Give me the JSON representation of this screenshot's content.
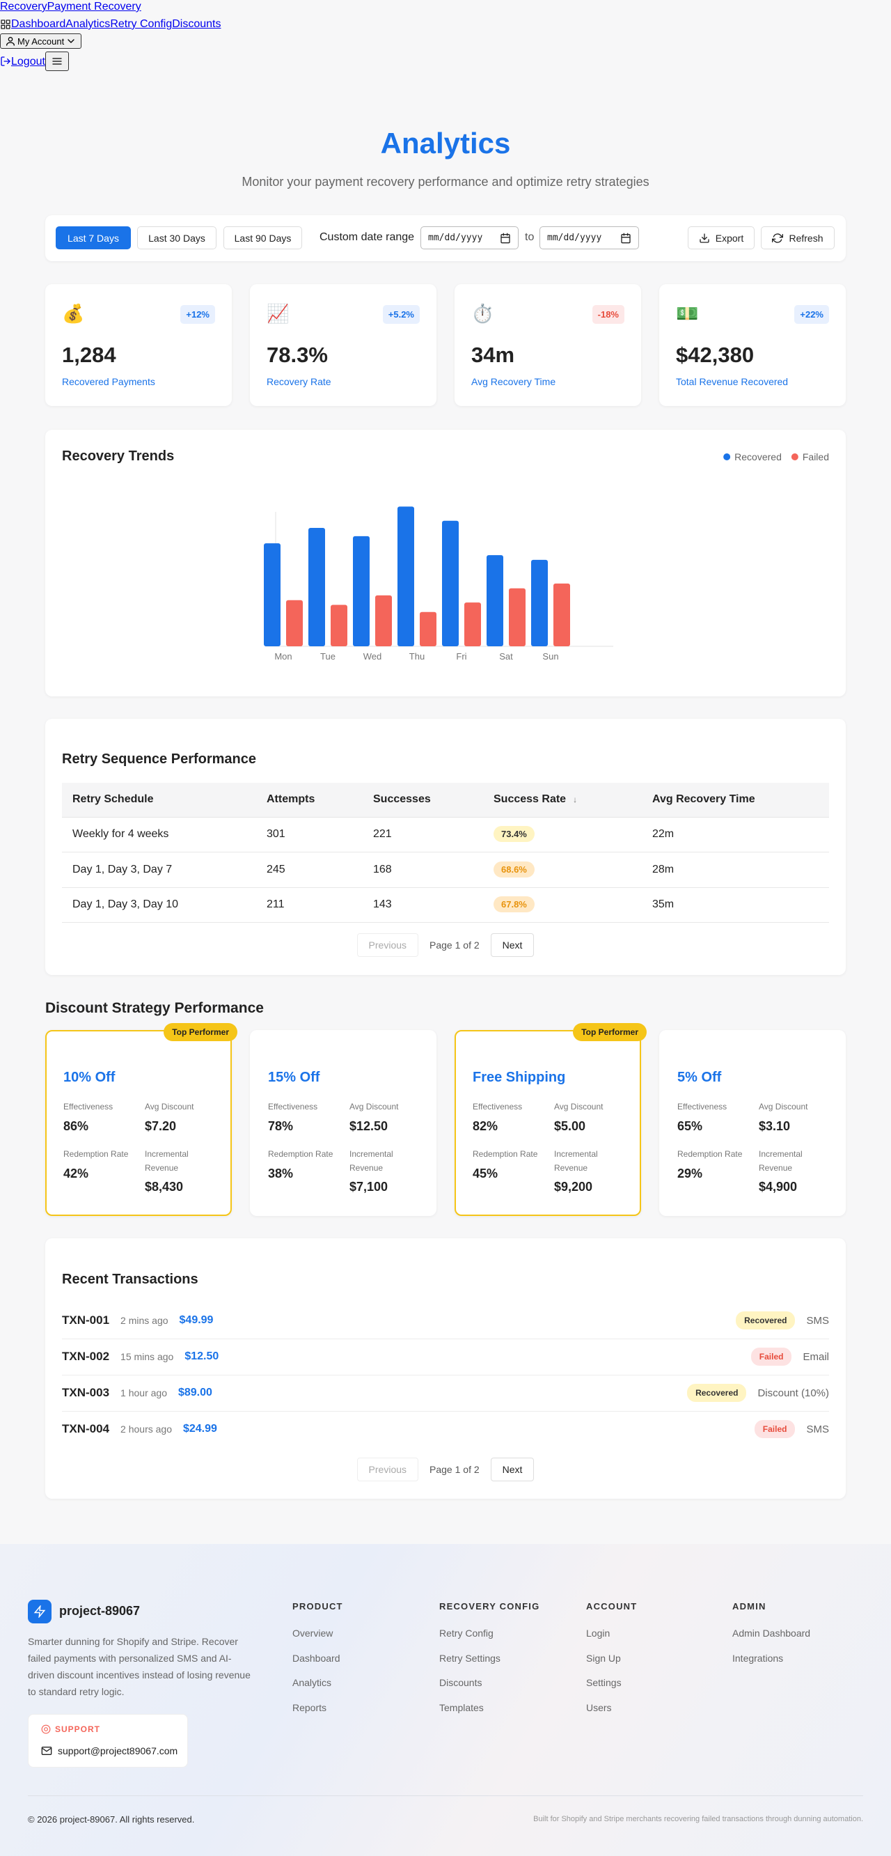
{
  "nav": {
    "brand": "Recovery",
    "brand_tagline": "Payment Recovery",
    "links": [
      "Dashboard",
      "Analytics",
      "Retry Config",
      "Discounts"
    ],
    "account": "My Account",
    "logout": "Logout"
  },
  "header": {
    "title": "Analytics",
    "subtitle": "Monitor your payment recovery performance and optimize retry strategies"
  },
  "filters": {
    "ranges": [
      "Last 7 Days",
      "Last 30 Days",
      "Last 90 Days"
    ],
    "active_range": 0,
    "custom_label": "Custom date range",
    "date_placeholder": "mm/dd/yyyy",
    "separator": "to",
    "export": "Export",
    "refresh": "Refresh"
  },
  "stats": [
    {
      "icon": "💰",
      "change": "+12%",
      "value": "1,284",
      "label": "Recovered Payments",
      "change_bg": "#e8f0fe",
      "change_fg": "#1a73e8"
    },
    {
      "icon": "📈",
      "change": "+5.2%",
      "value": "78.3%",
      "label": "Recovery Rate",
      "change_bg": "#e8f0fe",
      "change_fg": "#1a73e8"
    },
    {
      "icon": "⏱️",
      "change": "-18%",
      "value": "34m",
      "label": "Avg Recovery Time",
      "change_bg": "#fde8e8",
      "change_fg": "#e74c3c"
    },
    {
      "icon": "💵",
      "change": "+22%",
      "value": "$42,380",
      "label": "Total Revenue Recovered",
      "change_bg": "#e8f0fe",
      "change_fg": "#1a73e8"
    }
  ],
  "chart_data": {
    "type": "bar",
    "title": "Recovery Trends",
    "categories": [
      "Mon",
      "Tue",
      "Wed",
      "Thu",
      "Fri",
      "Sat",
      "Sun"
    ],
    "series": [
      {
        "name": "Recovered",
        "color": "#1a73e8",
        "values": [
          87,
          100,
          93,
          118,
          106,
          77,
          73
        ]
      },
      {
        "name": "Failed",
        "color": "#f4655a",
        "values": [
          39,
          35,
          43,
          29,
          37,
          49,
          53
        ]
      }
    ],
    "ylim": [
      0,
      120
    ],
    "legend": "top-right"
  },
  "retry_table": {
    "title": "Retry Sequence Performance",
    "columns": [
      "Retry Schedule",
      "Attempts",
      "Successes",
      "Success Rate",
      "Avg Recovery Time"
    ],
    "sorted_column": 3,
    "sort_indicator": "↓",
    "rows": [
      {
        "schedule": "Weekly for 4 weeks",
        "attempts": "301",
        "successes": "221",
        "success_rate": "73.4%",
        "avg_time": "22m",
        "rate_bg": "#fff4c2",
        "rate_fg": "#333333"
      },
      {
        "schedule": "Day 1, Day 3, Day 7",
        "attempts": "245",
        "successes": "168",
        "success_rate": "68.6%",
        "avg_time": "28m",
        "rate_bg": "#ffe8c4",
        "rate_fg": "#e8930c"
      },
      {
        "schedule": "Day 1, Day 3, Day 10",
        "attempts": "211",
        "successes": "143",
        "success_rate": "67.8%",
        "avg_time": "35m",
        "rate_bg": "#ffe8c4",
        "rate_fg": "#e8930c"
      }
    ],
    "pagination": {
      "previous": "Previous",
      "page": "Page 1 of 2",
      "next": "Next"
    }
  },
  "discounts": {
    "title": "Discount Strategy Performance",
    "badge": "Top Performer",
    "labels": {
      "effectiveness": "Effectiveness",
      "avg_discount": "Avg Discount",
      "redemption_rate": "Redemption Rate",
      "incremental_revenue": "Incremental Revenue"
    },
    "cards": [
      {
        "name": "10% Off",
        "top_performer": true,
        "effectiveness": "86%",
        "avg_discount": "$7.20",
        "redemption_rate": "42%",
        "incremental_revenue": "$8,430"
      },
      {
        "name": "15% Off",
        "top_performer": false,
        "effectiveness": "78%",
        "avg_discount": "$12.50",
        "redemption_rate": "38%",
        "incremental_revenue": "$7,100"
      },
      {
        "name": "Free Shipping",
        "top_performer": true,
        "effectiveness": "82%",
        "avg_discount": "$5.00",
        "redemption_rate": "45%",
        "incremental_revenue": "$9,200"
      },
      {
        "name": "5% Off",
        "top_performer": false,
        "effectiveness": "65%",
        "avg_discount": "$3.10",
        "redemption_rate": "29%",
        "incremental_revenue": "$4,900"
      }
    ]
  },
  "transactions": {
    "title": "Recent Transactions",
    "rows": [
      {
        "id": "TXN-001",
        "time": "2 mins ago",
        "amount": "$49.99",
        "status": "Recovered",
        "channel": "SMS",
        "status_bg": "#fff4c2",
        "status_fg": "#333333"
      },
      {
        "id": "TXN-002",
        "time": "15 mins ago",
        "amount": "$12.50",
        "status": "Failed",
        "channel": "Email",
        "status_bg": "#fde2e2",
        "status_fg": "#e74c3c"
      },
      {
        "id": "TXN-003",
        "time": "1 hour ago",
        "amount": "$89.00",
        "status": "Recovered",
        "channel": "Discount (10%)",
        "status_bg": "#fff4c2",
        "status_fg": "#333333"
      },
      {
        "id": "TXN-004",
        "time": "2 hours ago",
        "amount": "$24.99",
        "status": "Failed",
        "channel": "SMS",
        "status_bg": "#fde2e2",
        "status_fg": "#e74c3c"
      }
    ],
    "pagination": {
      "previous": "Previous",
      "page": "Page 1 of 2",
      "next": "Next"
    }
  },
  "footer": {
    "brand": "project-89067",
    "description": "Smarter dunning for Shopify and Stripe. Recover failed payments with personalized SMS and AI-driven discount incentives instead of losing revenue to standard retry logic.",
    "support_label": "SUPPORT",
    "support_email": "support@project89067.com",
    "columns": [
      {
        "title": "PRODUCT",
        "links": [
          "Overview",
          "Dashboard",
          "Analytics",
          "Reports"
        ]
      },
      {
        "title": "RECOVERY CONFIG",
        "links": [
          "Retry Config",
          "Retry Settings",
          "Discounts",
          "Templates"
        ]
      },
      {
        "title": "ACCOUNT",
        "links": [
          "Login",
          "Sign Up",
          "Settings",
          "Users"
        ]
      },
      {
        "title": "ADMIN",
        "links": [
          "Admin Dashboard",
          "Integrations"
        ]
      }
    ],
    "copyright": "© 2026 project-89067. All rights reserved.",
    "tagline": "Built for Shopify and Stripe merchants recovering failed transactions through dunning automation."
  }
}
